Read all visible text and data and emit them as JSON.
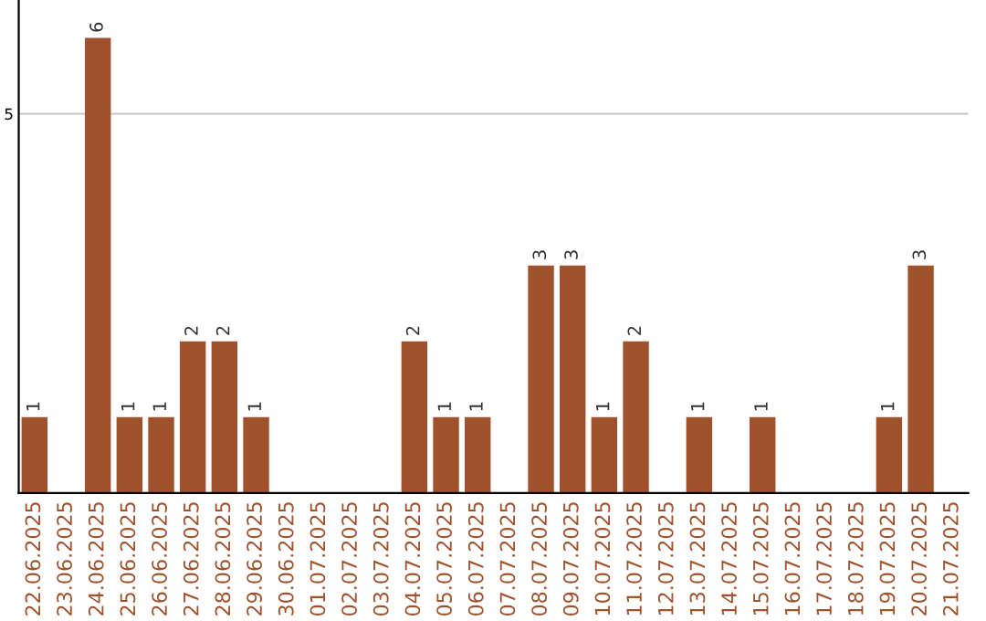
{
  "chart_data": {
    "type": "bar",
    "categories": [
      "22.06.2025",
      "23.06.2025",
      "24.06.2025",
      "25.06.2025",
      "26.06.2025",
      "27.06.2025",
      "28.06.2025",
      "29.06.2025",
      "30.06.2025",
      "01.07.2025",
      "02.07.2025",
      "03.07.2025",
      "04.07.2025",
      "05.07.2025",
      "06.07.2025",
      "07.07.2025",
      "08.07.2025",
      "09.07.2025",
      "10.07.2025",
      "11.07.2025",
      "12.07.2025",
      "13.07.2025",
      "14.07.2025",
      "15.07.2025",
      "16.07.2025",
      "17.07.2025",
      "18.07.2025",
      "19.07.2025",
      "20.07.2025",
      "21.07.2025"
    ],
    "values": [
      1,
      0,
      6,
      1,
      1,
      2,
      2,
      1,
      0,
      0,
      0,
      0,
      2,
      1,
      1,
      0,
      3,
      3,
      1,
      2,
      0,
      1,
      0,
      1,
      0,
      0,
      0,
      1,
      3,
      0
    ],
    "value_labels": [
      "1",
      null,
      "6",
      "1",
      "1",
      "2",
      "2",
      "1",
      null,
      null,
      null,
      null,
      "2",
      "1",
      "1",
      null,
      "3",
      "3",
      "1",
      "2",
      null,
      "1",
      null,
      "1",
      null,
      null,
      null,
      "1",
      "3",
      null
    ],
    "color": "#a0522d",
    "ylim": [
      0,
      6.5
    ],
    "yticks": [
      5
    ],
    "grid": "y"
  }
}
